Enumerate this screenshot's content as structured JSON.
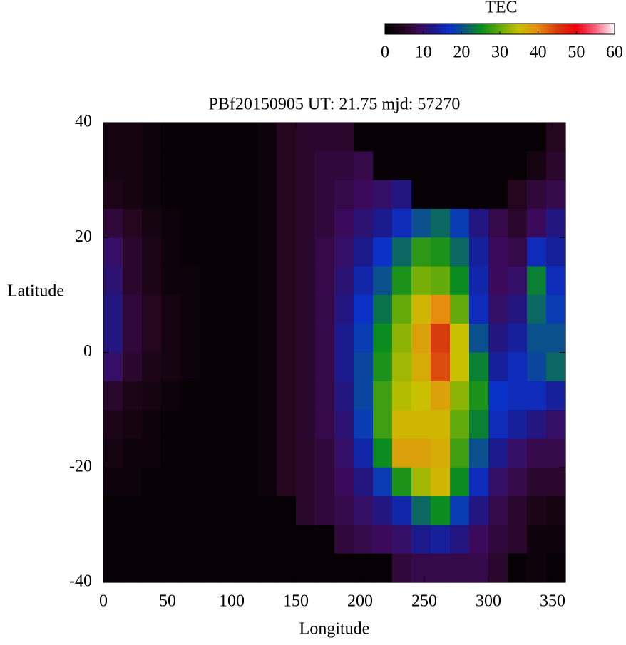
{
  "chart_data": {
    "type": "heatmap",
    "title": "PBf20150905  UT: 21.75  mjd: 57270",
    "xlabel": "Longitude",
    "ylabel": "Latitude",
    "colorbar_label": "TEC",
    "xlim": [
      0,
      360
    ],
    "xticks": [
      0,
      50,
      100,
      150,
      200,
      250,
      300,
      350
    ],
    "ylim": [
      -40,
      40
    ],
    "yticks": [
      40,
      20,
      0,
      -20,
      -40
    ],
    "clim": [
      0,
      60
    ],
    "cticks": [
      0,
      10,
      20,
      30,
      40,
      50,
      60
    ],
    "colorscale": [
      [
        0,
        "#000000"
      ],
      [
        5,
        "#24061e"
      ],
      [
        9,
        "#3c0a5a"
      ],
      [
        13,
        "#1a1a8c"
      ],
      [
        17,
        "#0a32c8"
      ],
      [
        21,
        "#0a5a78"
      ],
      [
        25,
        "#0a8c1e"
      ],
      [
        30,
        "#64aa0a"
      ],
      [
        35,
        "#c8c000"
      ],
      [
        40,
        "#e88c10"
      ],
      [
        45,
        "#d83c0c"
      ],
      [
        50,
        "#f0000a"
      ],
      [
        55,
        "#ff6080"
      ],
      [
        60,
        "#ffffff"
      ]
    ],
    "x": [
      7.5,
      22.5,
      37.5,
      52.5,
      67.5,
      82.5,
      97.5,
      112.5,
      127.5,
      142.5,
      157.5,
      172.5,
      187.5,
      202.5,
      217.5,
      232.5,
      247.5,
      262.5,
      277.5,
      292.5,
      307.5,
      322.5,
      337.5,
      352.5
    ],
    "y": [
      37.5,
      32.5,
      27.5,
      22.5,
      17.5,
      12.5,
      7.5,
      2.5,
      -2.5,
      -7.5,
      -12.5,
      -17.5,
      -22.5,
      -27.5,
      -32.5,
      -37.5
    ],
    "z": [
      [
        3,
        3,
        2,
        1,
        1,
        1,
        1,
        1,
        2,
        5,
        6,
        6,
        6,
        1,
        1,
        1,
        1,
        1,
        1,
        1,
        1,
        1,
        1,
        5
      ],
      [
        3,
        3,
        2,
        1,
        1,
        1,
        1,
        1,
        2,
        5,
        6,
        7,
        7,
        8,
        1,
        1,
        1,
        1,
        1,
        1,
        1,
        1,
        3,
        6
      ],
      [
        4,
        3,
        2,
        1,
        1,
        1,
        1,
        1,
        2,
        5,
        6,
        7,
        8,
        9,
        10,
        12,
        1,
        1,
        1,
        1,
        1,
        5,
        7,
        8
      ],
      [
        7,
        5,
        3,
        2,
        1,
        1,
        1,
        1,
        2,
        5,
        6,
        7,
        9,
        11,
        13,
        16,
        20,
        22,
        18,
        12,
        8,
        6,
        9,
        12
      ],
      [
        10,
        6,
        4,
        2,
        1,
        1,
        1,
        1,
        2,
        5,
        6,
        8,
        10,
        13,
        17,
        22,
        27,
        26,
        22,
        14,
        9,
        8,
        16,
        14
      ],
      [
        11,
        6,
        4,
        2,
        2,
        1,
        1,
        1,
        2,
        5,
        6,
        8,
        11,
        15,
        20,
        26,
        31,
        30,
        25,
        15,
        9,
        10,
        24,
        16
      ],
      [
        12,
        7,
        5,
        3,
        2,
        1,
        1,
        1,
        2,
        5,
        6,
        8,
        12,
        17,
        23,
        30,
        36,
        40,
        30,
        16,
        10,
        12,
        22,
        18
      ],
      [
        12,
        7,
        5,
        3,
        2,
        1,
        1,
        1,
        2,
        5,
        6,
        8,
        13,
        18,
        25,
        32,
        38,
        45,
        35,
        20,
        12,
        14,
        20,
        20
      ],
      [
        10,
        6,
        4,
        3,
        2,
        1,
        1,
        1,
        2,
        5,
        6,
        8,
        13,
        19,
        26,
        33,
        37,
        44,
        35,
        24,
        14,
        16,
        19,
        22
      ],
      [
        6,
        4,
        3,
        2,
        1,
        1,
        1,
        1,
        2,
        5,
        6,
        8,
        12,
        19,
        28,
        34,
        35,
        38,
        32,
        26,
        17,
        16,
        16,
        14
      ],
      [
        4,
        3,
        2,
        1,
        1,
        1,
        1,
        1,
        2,
        5,
        6,
        8,
        11,
        18,
        28,
        36,
        36,
        36,
        30,
        24,
        16,
        14,
        12,
        10
      ],
      [
        3,
        2,
        2,
        1,
        1,
        1,
        1,
        1,
        2,
        5,
        6,
        7,
        10,
        15,
        25,
        38,
        38,
        37,
        28,
        20,
        13,
        10,
        8,
        8
      ],
      [
        2,
        2,
        1,
        1,
        1,
        1,
        1,
        1,
        2,
        5,
        6,
        7,
        9,
        12,
        18,
        26,
        33,
        36,
        25,
        16,
        10,
        8,
        6,
        6
      ],
      [
        1,
        1,
        1,
        1,
        1,
        1,
        1,
        1,
        1,
        1,
        6,
        7,
        8,
        10,
        12,
        15,
        22,
        25,
        18,
        12,
        8,
        6,
        4,
        3
      ],
      [
        1,
        1,
        1,
        1,
        1,
        1,
        1,
        1,
        1,
        1,
        1,
        1,
        7,
        8,
        9,
        10,
        13,
        14,
        12,
        9,
        7,
        6,
        2,
        2
      ],
      [
        1,
        1,
        1,
        1,
        1,
        1,
        1,
        1,
        1,
        1,
        1,
        1,
        1,
        1,
        1,
        7,
        8,
        8,
        8,
        8,
        6,
        1,
        2,
        1
      ]
    ]
  }
}
